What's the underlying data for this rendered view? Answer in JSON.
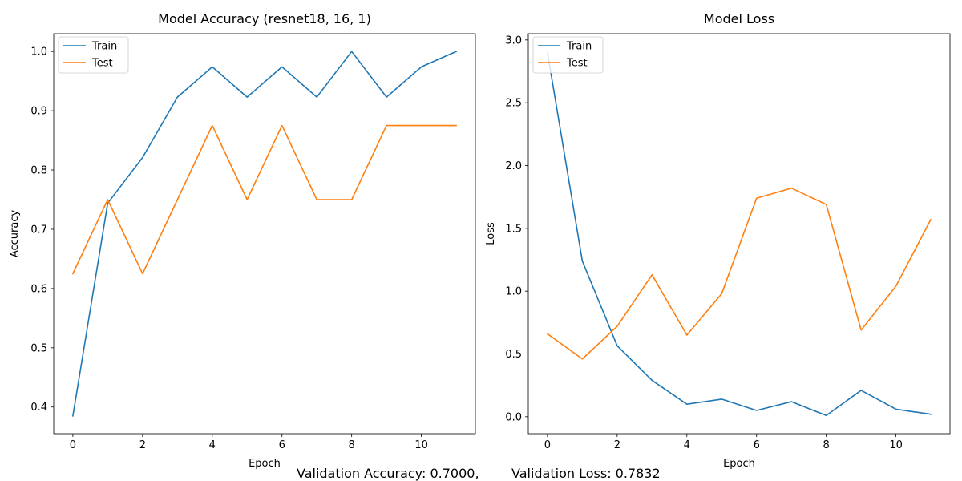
{
  "chart_data": [
    {
      "type": "line",
      "title": "Model Accuracy (resnet18, 16, 1)",
      "xlabel": "Epoch",
      "ylabel": "Accuracy",
      "x": [
        0,
        1,
        2,
        3,
        4,
        5,
        6,
        7,
        8,
        9,
        10,
        11
      ],
      "xlim": [
        -0.55,
        11.55
      ],
      "ylim": [
        0.355,
        1.03
      ],
      "xticks": [
        0,
        2,
        4,
        6,
        8,
        10
      ],
      "yticks": [
        0.4,
        0.5,
        0.6,
        0.7,
        0.8,
        0.9,
        1.0
      ],
      "ytick_labels": [
        "0.4",
        "0.5",
        "0.6",
        "0.7",
        "0.8",
        "0.9",
        "1.0"
      ],
      "legend_position": "top-left",
      "grid": false,
      "series": [
        {
          "name": "Train",
          "color": "#1f77b4",
          "values": [
            0.385,
            0.744,
            0.821,
            0.923,
            0.974,
            0.923,
            0.974,
            0.923,
            1.0,
            0.923,
            0.974,
            1.0
          ]
        },
        {
          "name": "Test",
          "color": "#ff7f0e",
          "values": [
            0.625,
            0.75,
            0.625,
            0.75,
            0.875,
            0.75,
            0.875,
            0.75,
            0.75,
            0.875,
            0.875,
            0.875
          ]
        }
      ]
    },
    {
      "type": "line",
      "title": "Model Loss",
      "xlabel": "Epoch",
      "ylabel": "Loss",
      "x": [
        0,
        1,
        2,
        3,
        4,
        5,
        6,
        7,
        8,
        9,
        10,
        11
      ],
      "xlim": [
        -0.55,
        11.55
      ],
      "ylim": [
        -0.135,
        3.05
      ],
      "xticks": [
        0,
        2,
        4,
        6,
        8,
        10
      ],
      "yticks": [
        0.0,
        0.5,
        1.0,
        1.5,
        2.0,
        2.5,
        3.0
      ],
      "ytick_labels": [
        "0.0",
        "0.5",
        "1.0",
        "1.5",
        "2.0",
        "2.5",
        "3.0"
      ],
      "legend_position": "top-left",
      "grid": false,
      "series": [
        {
          "name": "Train",
          "color": "#1f77b4",
          "values": [
            2.9,
            1.24,
            0.565,
            0.29,
            0.1,
            0.14,
            0.05,
            0.12,
            0.01,
            0.21,
            0.06,
            0.02
          ]
        },
        {
          "name": "Test",
          "color": "#ff7f0e",
          "values": [
            0.66,
            0.46,
            0.72,
            1.13,
            0.65,
            0.98,
            1.74,
            1.82,
            1.69,
            0.69,
            1.04,
            1.57
          ]
        }
      ]
    }
  ],
  "footer": {
    "accuracy_text": "Validation Accuracy: 0.7000,",
    "loss_text": "Validation Loss: 0.7832"
  }
}
